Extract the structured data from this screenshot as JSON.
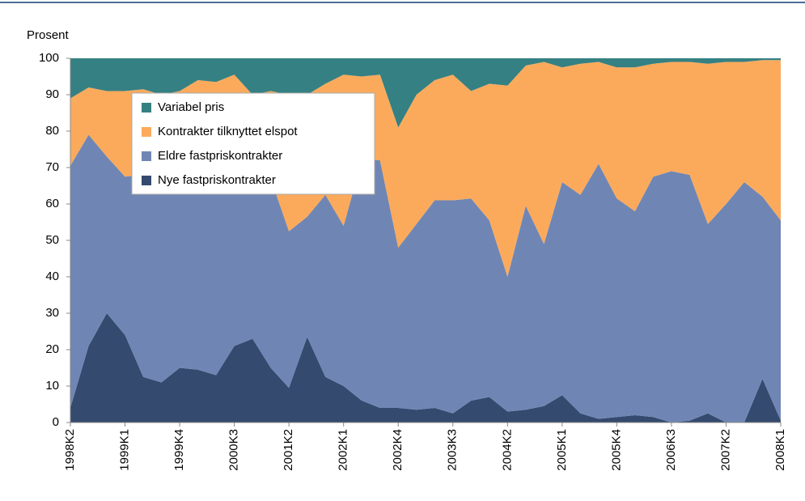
{
  "chart_data": {
    "type": "stacked-area",
    "y_label": "Prosent",
    "categories": [
      "1998K2",
      null,
      null,
      "1999K1",
      null,
      null,
      "1999K4",
      null,
      null,
      "2000K3",
      null,
      null,
      "2001K2",
      null,
      null,
      "2002K1",
      null,
      null,
      "2002K4",
      null,
      null,
      "2003K3",
      null,
      null,
      "2004K2",
      null,
      null,
      "2005K1",
      null,
      null,
      "2005K4",
      null,
      null,
      "2006K3",
      null,
      null,
      "2007K2",
      null,
      null,
      "2008K1"
    ],
    "series": [
      {
        "name": "Nye fastpriskontrakter",
        "color": "#344a6e",
        "values": [
          4,
          21,
          30,
          24,
          12.5,
          11,
          15,
          14.5,
          13,
          21,
          23,
          15,
          9.5,
          23.5,
          12.5,
          10,
          6,
          4,
          4,
          3.5,
          4,
          2.5,
          6,
          7,
          3,
          3.5,
          4.5,
          7.5,
          2.5,
          1,
          1.5,
          2,
          1.5,
          0,
          0.5,
          2.5,
          0,
          0,
          12,
          0.5
        ]
      },
      {
        "name": "Eldre fastpriskontrakter",
        "color": "#6f86b5",
        "values": [
          66.5,
          58,
          43,
          43.5,
          55.5,
          57,
          53,
          53.5,
          55,
          47,
          46,
          52,
          43,
          33,
          50,
          44,
          66,
          68,
          44,
          51,
          57,
          58.5,
          55.5,
          48.5,
          37,
          56,
          44.5,
          58.5,
          60,
          70,
          60,
          56,
          66,
          69,
          67.5,
          52,
          60,
          66,
          50,
          55
        ]
      },
      {
        "name": "Kontrakter tilknyttet elspot",
        "color": "#fbaa5c",
        "values": [
          18.5,
          13,
          18,
          23.5,
          23.5,
          22,
          23,
          26,
          25.5,
          27.5,
          21,
          24,
          37.5,
          33.5,
          30.5,
          41.5,
          23,
          23.5,
          33,
          35.5,
          33,
          34.5,
          29.5,
          37.5,
          52.5,
          38.5,
          50,
          31.5,
          36,
          28,
          36,
          39.5,
          31,
          30,
          31,
          44,
          39,
          33,
          37.5,
          44
        ]
      },
      {
        "name": "Variabel pris",
        "color": "#358082",
        "values": [
          11,
          8,
          9,
          9,
          8.5,
          10,
          9,
          6,
          6.5,
          4.5,
          10,
          9,
          10,
          10,
          7,
          4.5,
          5,
          4.5,
          19,
          10,
          6,
          4.5,
          9,
          7,
          7.5,
          2,
          1,
          2.5,
          1.5,
          1,
          2.5,
          2.5,
          1.5,
          1,
          1,
          1.5,
          1,
          1,
          0.5,
          0.5
        ]
      }
    ],
    "ylim": [
      0,
      100
    ],
    "yticks": [
      0,
      10,
      20,
      30,
      40,
      50,
      60,
      70,
      80,
      90,
      100
    ]
  }
}
